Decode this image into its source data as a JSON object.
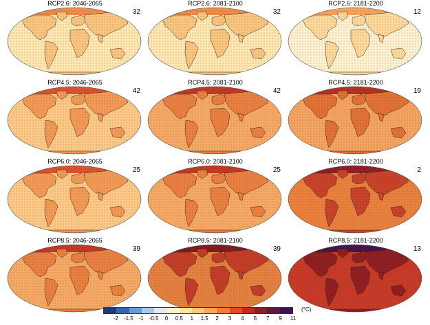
{
  "panels": [
    {
      "title": "RCP2.6: 2046-2065",
      "count": "32",
      "scheme": "a"
    },
    {
      "title": "RCP2.6: 2081-2100",
      "count": "32",
      "scheme": "a"
    },
    {
      "title": "RCP2.6: 2181-2200",
      "count": "12",
      "scheme": "a2"
    },
    {
      "title": "RCP4.5: 2046-2065",
      "count": "42",
      "scheme": "b"
    },
    {
      "title": "RCP4.5: 2081-2100",
      "count": "42",
      "scheme": "c"
    },
    {
      "title": "RCP4.5: 2181-2200",
      "count": "19",
      "scheme": "d"
    },
    {
      "title": "RCP6.0: 2046-2065",
      "count": "25",
      "scheme": "b"
    },
    {
      "title": "RCP6.0: 2081-2100",
      "count": "25",
      "scheme": "c"
    },
    {
      "title": "RCP6.0: 2181-2200",
      "count": "2",
      "scheme": "e"
    },
    {
      "title": "RCP8.5: 2046-2065",
      "count": "39",
      "scheme": "c"
    },
    {
      "title": "RCP8.5: 2081-2100",
      "count": "39",
      "scheme": "f"
    },
    {
      "title": "RCP8.5: 2181-2200",
      "count": "13",
      "scheme": "g"
    }
  ],
  "colorbar": {
    "ticks": [
      "-2",
      "-1.5",
      "-1",
      "-0.5",
      "0",
      "0.5",
      "1",
      "1.5",
      "2",
      "3",
      "4",
      "5",
      "7",
      "9",
      "11"
    ],
    "colors": [
      "#1f3a78",
      "#3b66ad",
      "#6b9bd1",
      "#a9c8e8",
      "#dfeaf5",
      "#fdf1c9",
      "#fde3a4",
      "#fcc97c",
      "#f8a85a",
      "#ee7c3e",
      "#de4d2a",
      "#bd2c23",
      "#8f1e1e",
      "#5b1a3a",
      "#3c1455"
    ],
    "unit": "(°C)"
  },
  "schemes": {
    "a": {
      "ocean": "#fde6b0",
      "land": "#f9c47e",
      "arctic": "#ee8c4a"
    },
    "a2": {
      "ocean": "#fdf0cf",
      "land": "#fcd99a",
      "arctic": "#f6a45c"
    },
    "b": {
      "ocean": "#fbc985",
      "land": "#f29a55",
      "arctic": "#d9532c"
    },
    "c": {
      "ocean": "#f6a965",
      "land": "#e97f40",
      "arctic": "#c23a25"
    },
    "d": {
      "ocean": "#f4a460",
      "land": "#e27135",
      "arctic": "#b53223"
    },
    "e": {
      "ocean": "#e9803e",
      "land": "#c9432a",
      "arctic": "#8f1f25"
    },
    "f": {
      "ocean": "#e48040",
      "land": "#c33e28",
      "arctic": "#7f1b22"
    },
    "g": {
      "ocean": "#c63a27",
      "land": "#8f1f22",
      "arctic": "#45154c"
    }
  }
}
